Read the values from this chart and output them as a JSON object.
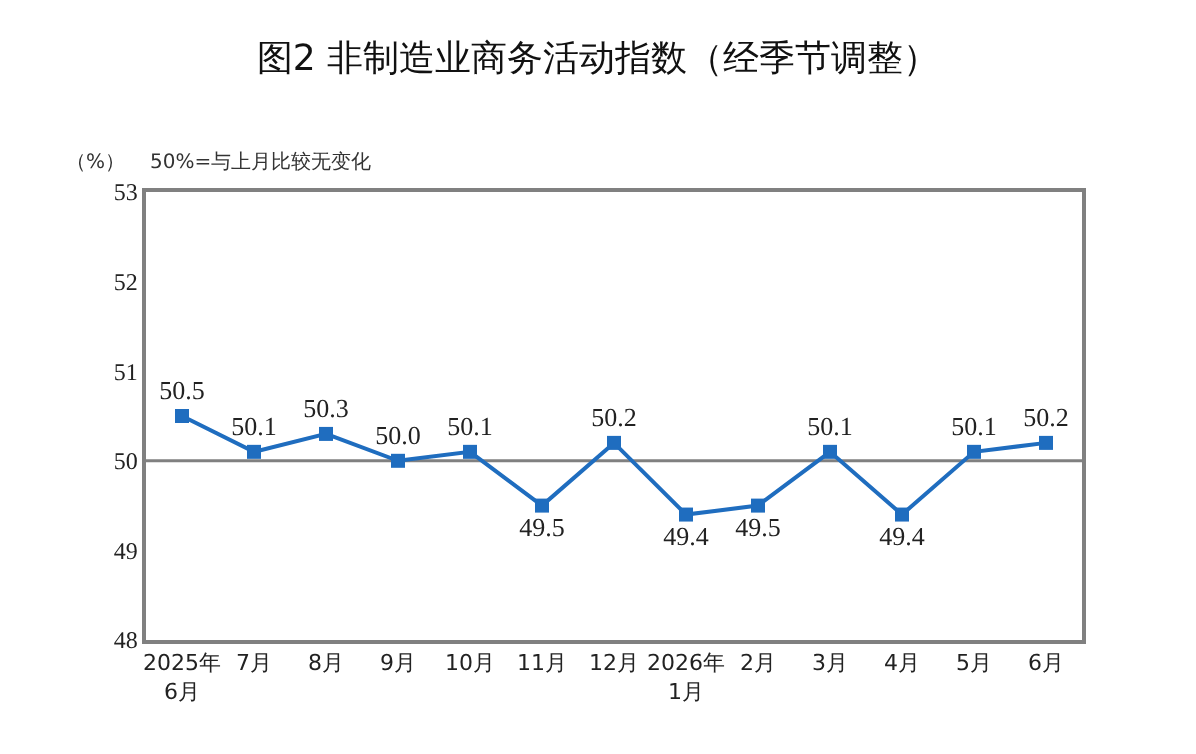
{
  "chart_data": {
    "type": "line",
    "title": "图2 非制造业商务活动指数（经季节调整）",
    "annotations": [
      "（%）",
      "50%=与上月比较无变化"
    ],
    "categories": [
      "2025年\n6月",
      "7月",
      "8月",
      "9月",
      "10月",
      "11月",
      "12月",
      "2026年\n1月",
      "2月",
      "3月",
      "4月",
      "5月",
      "6月"
    ],
    "series": [
      {
        "color": "#1f6dbf",
        "values": [
          50.5,
          50.1,
          50.3,
          50.0,
          50.1,
          49.5,
          50.2,
          49.4,
          49.5,
          50.1,
          49.4,
          50.1,
          50.2
        ],
        "value_labels": [
          "50.5",
          "50.1",
          "50.3",
          "50.0",
          "50.1",
          "49.5",
          "50.2",
          "49.4",
          "49.5",
          "50.1",
          "49.4",
          "50.1",
          "50.2"
        ]
      }
    ],
    "ylim": [
      48,
      53
    ],
    "yticks": [
      48,
      49,
      50,
      51,
      52,
      53
    ],
    "ref_lines": [
      {
        "axis": "y",
        "value": 50,
        "color": "#808080"
      }
    ],
    "marker": "square",
    "line_style": "solid",
    "grid": false,
    "legend": false
  }
}
